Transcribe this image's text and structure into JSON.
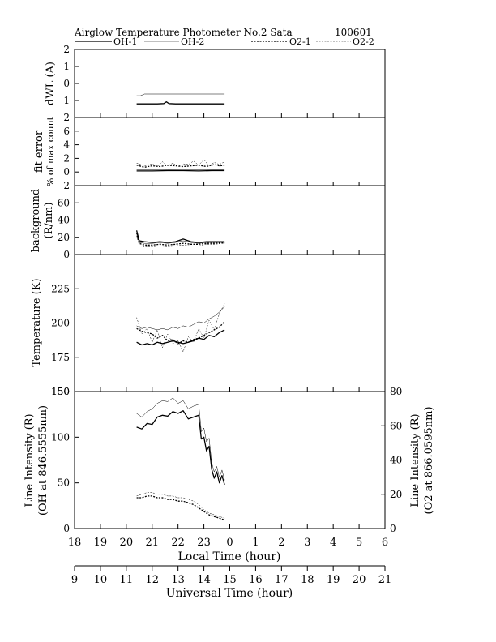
{
  "header": {
    "title": "Airglow Temperature Photometer No.2  Sata",
    "date": "100601"
  },
  "legend": {
    "entries": [
      {
        "label": "OH-1",
        "style": "thick-solid"
      },
      {
        "label": "OH-2",
        "style": "thin-solid"
      },
      {
        "label": "O2-1",
        "style": "thick-dashed"
      },
      {
        "label": "O2-2",
        "style": "thin-dashed"
      }
    ]
  },
  "x_axes": {
    "local": {
      "label": "Local Time (hour)",
      "ticks": [
        "18",
        "19",
        "20",
        "21",
        "22",
        "23",
        "0",
        "1",
        "2",
        "3",
        "4",
        "5",
        "6"
      ]
    },
    "universal": {
      "label": "Universal Time (hour)",
      "ticks": [
        "9",
        "10",
        "11",
        "12",
        "13",
        "14",
        "15",
        "16",
        "17",
        "18",
        "19",
        "20",
        "21"
      ]
    }
  },
  "chart_data": [
    {
      "type": "line",
      "panel": "dwl",
      "ylabel": "dWL (A)",
      "ylim": [
        -2,
        2
      ],
      "yticks": [
        "2",
        "1",
        "0",
        "-1",
        "-2"
      ],
      "x_unit": "local time (hour)",
      "series": [
        {
          "name": "OH-1",
          "x": [
            20.4,
            21.2,
            21.45,
            21.55,
            21.65,
            21.9,
            23.8
          ],
          "y": [
            -1.2,
            -1.2,
            -1.18,
            -1.08,
            -1.18,
            -1.2,
            -1.2
          ]
        },
        {
          "name": "OH-2",
          "x": [
            20.4,
            20.55,
            20.7,
            23.8
          ],
          "y": [
            -0.72,
            -0.72,
            -0.62,
            -0.62
          ]
        }
      ]
    },
    {
      "type": "line",
      "panel": "fit_error",
      "ylabel": [
        "fit error",
        "% of max count"
      ],
      "ylim": [
        -2,
        8
      ],
      "yticks": [
        "6",
        "4",
        "2",
        "0",
        "-2"
      ],
      "x_unit": "local time (hour)",
      "series": [
        {
          "name": "OH-1",
          "x": [
            20.4,
            21.0,
            21.6,
            22.2,
            22.8,
            23.3,
            23.8
          ],
          "y": [
            0.15,
            0.15,
            0.2,
            0.2,
            0.15,
            0.2,
            0.2
          ]
        },
        {
          "name": "OH-2",
          "x": [
            20.4,
            21.0,
            21.6,
            22.2,
            22.8,
            23.3,
            23.8
          ],
          "y": [
            0.3,
            0.3,
            0.35,
            0.3,
            0.35,
            0.35,
            0.35
          ]
        },
        {
          "name": "O2-1",
          "x": [
            20.4,
            20.7,
            21.0,
            21.3,
            21.6,
            21.9,
            22.2,
            22.5,
            22.8,
            23.1,
            23.4,
            23.6,
            23.8
          ],
          "y": [
            1.0,
            0.7,
            0.9,
            0.8,
            1.0,
            0.9,
            0.8,
            0.9,
            1.0,
            0.8,
            1.1,
            0.9,
            1.0
          ]
        },
        {
          "name": "O2-2",
          "x": [
            20.4,
            20.7,
            21.0,
            21.2,
            21.4,
            21.6,
            21.8,
            22.0,
            22.2,
            22.4,
            22.6,
            22.8,
            23.0,
            23.2,
            23.4,
            23.6,
            23.8
          ],
          "y": [
            1.3,
            0.9,
            1.2,
            0.8,
            1.5,
            0.9,
            1.3,
            0.8,
            1.2,
            1.1,
            1.6,
            1.0,
            1.8,
            0.9,
            1.4,
            1.1,
            1.5
          ]
        }
      ]
    },
    {
      "type": "line",
      "panel": "background",
      "ylabel": [
        "background",
        "(R/nm)"
      ],
      "ylim": [
        0,
        80
      ],
      "yticks": [
        "60",
        "40",
        "20",
        "0"
      ],
      "x_unit": "local time (hour)",
      "series": [
        {
          "name": "OH-1",
          "x": [
            20.4,
            20.5,
            20.7,
            21.0,
            21.3,
            21.6,
            21.9,
            22.2,
            22.5,
            22.8,
            23.1,
            23.4,
            23.8
          ],
          "y": [
            28,
            16,
            15,
            14,
            15,
            14,
            15,
            18,
            15,
            14,
            15,
            15,
            15
          ]
        },
        {
          "name": "OH-2",
          "x": [
            20.4,
            20.5,
            20.7,
            21.0,
            21.3,
            21.6,
            21.9,
            22.2,
            22.5,
            22.8,
            23.1,
            23.4,
            23.8
          ],
          "y": [
            25,
            14,
            13,
            13,
            14,
            13,
            14,
            16,
            14,
            13,
            14,
            14,
            14
          ]
        },
        {
          "name": "O2-1",
          "x": [
            20.4,
            20.5,
            20.7,
            21.0,
            21.3,
            21.6,
            21.9,
            22.2,
            22.5,
            22.8,
            23.1,
            23.4,
            23.8
          ],
          "y": [
            25,
            13,
            11,
            11,
            12,
            11,
            12,
            13,
            12,
            12,
            13,
            13,
            14
          ]
        },
        {
          "name": "O2-2",
          "x": [
            20.4,
            20.5,
            20.7,
            21.0,
            21.3,
            21.6,
            21.9,
            22.2,
            22.5,
            22.8,
            23.1,
            23.4,
            23.8
          ],
          "y": [
            22,
            10,
            9,
            9,
            10,
            9,
            10,
            11,
            10,
            10,
            12,
            12,
            13
          ]
        }
      ]
    },
    {
      "type": "line",
      "panel": "temperature",
      "ylabel": "Temperature (K)",
      "ylim": [
        150,
        250
      ],
      "yticks": [
        "225",
        "200",
        "175",
        "150"
      ],
      "x_unit": "local time (hour)",
      "series": [
        {
          "name": "OH-1",
          "x": [
            20.4,
            20.6,
            20.8,
            21.0,
            21.2,
            21.4,
            21.6,
            21.8,
            22.0,
            22.2,
            22.4,
            22.6,
            22.8,
            23.0,
            23.2,
            23.4,
            23.6,
            23.8
          ],
          "y": [
            186,
            184,
            185,
            184,
            186,
            185,
            186,
            187,
            186,
            185,
            186,
            187,
            189,
            188,
            191,
            190,
            193,
            195
          ]
        },
        {
          "name": "OH-2",
          "x": [
            20.4,
            20.6,
            20.8,
            21.0,
            21.2,
            21.4,
            21.6,
            21.8,
            22.0,
            22.2,
            22.4,
            22.6,
            22.8,
            23.0,
            23.2,
            23.4,
            23.6,
            23.8
          ],
          "y": [
            198,
            196,
            197,
            196,
            195,
            196,
            195,
            197,
            196,
            198,
            197,
            199,
            201,
            200,
            203,
            205,
            208,
            212
          ]
        },
        {
          "name": "O2-1",
          "x": [
            20.4,
            20.6,
            20.8,
            21.0,
            21.2,
            21.4,
            21.6,
            21.8,
            22.0,
            22.2,
            22.4,
            22.6,
            22.8,
            23.0,
            23.2,
            23.4,
            23.6,
            23.8
          ],
          "y": [
            196,
            194,
            193,
            192,
            189,
            191,
            187,
            188,
            185,
            187,
            186,
            188,
            189,
            191,
            193,
            195,
            197,
            201
          ]
        },
        {
          "name": "O2-2",
          "x": [
            20.4,
            20.6,
            20.8,
            21.0,
            21.2,
            21.4,
            21.6,
            21.8,
            22.0,
            22.2,
            22.4,
            22.6,
            22.8,
            23.0,
            23.2,
            23.4,
            23.6,
            23.8
          ],
          "y": [
            204,
            192,
            196,
            186,
            195,
            182,
            192,
            185,
            187,
            179,
            190,
            186,
            196,
            189,
            202,
            195,
            207,
            214
          ]
        }
      ]
    },
    {
      "type": "line",
      "panel": "line_intensity",
      "ylabel": [
        "Line Intensity (R)",
        "(OH at 846.5555nm)"
      ],
      "ylim": [
        0,
        150
      ],
      "yticks": [
        "150",
        "100",
        "50",
        "0"
      ],
      "ylabel_right": [
        "Line Intensity (R)",
        "(O2 at 866.0595nm)"
      ],
      "ylim_right": [
        0,
        80
      ],
      "yticks_right": [
        "80",
        "60",
        "40",
        "20",
        "0"
      ],
      "x_unit": "local time (hour)",
      "series": [
        {
          "name": "OH-1",
          "axis": "left",
          "x": [
            20.4,
            20.6,
            20.8,
            21.0,
            21.2,
            21.4,
            21.6,
            21.8,
            22.0,
            22.2,
            22.4,
            22.6,
            22.8,
            22.9,
            23.0,
            23.1,
            23.2,
            23.3,
            23.4,
            23.5,
            23.6,
            23.7,
            23.8
          ],
          "y": [
            111,
            109,
            115,
            114,
            122,
            124,
            123,
            128,
            126,
            129,
            120,
            122,
            124,
            98,
            100,
            85,
            90,
            65,
            55,
            62,
            50,
            58,
            48
          ]
        },
        {
          "name": "OH-2",
          "axis": "left",
          "x": [
            20.4,
            20.6,
            20.8,
            21.0,
            21.2,
            21.4,
            21.6,
            21.8,
            22.0,
            22.2,
            22.4,
            22.6,
            22.8,
            22.9,
            23.0,
            23.1,
            23.2,
            23.3,
            23.4,
            23.5,
            23.6,
            23.7,
            23.8
          ],
          "y": [
            126,
            122,
            128,
            131,
            137,
            140,
            139,
            143,
            137,
            140,
            131,
            134,
            136,
            106,
            110,
            95,
            99,
            72,
            62,
            68,
            56,
            64,
            53
          ]
        },
        {
          "name": "O2-1",
          "axis": "right",
          "x": [
            20.4,
            20.6,
            20.8,
            21.0,
            21.2,
            21.4,
            21.6,
            21.8,
            22.0,
            22.2,
            22.4,
            22.6,
            22.8,
            23.0,
            23.2,
            23.4,
            23.6,
            23.8
          ],
          "y": [
            18,
            18,
            19,
            19,
            18,
            18,
            17,
            17,
            16,
            16,
            15,
            14,
            12,
            10,
            8,
            7,
            6,
            5
          ]
        },
        {
          "name": "O2-2",
          "axis": "right",
          "x": [
            20.4,
            20.6,
            20.8,
            21.0,
            21.2,
            21.4,
            21.6,
            21.8,
            22.0,
            22.2,
            22.4,
            22.6,
            22.8,
            23.0,
            23.2,
            23.4,
            23.6,
            23.8
          ],
          "y": [
            19,
            20,
            21,
            21,
            20,
            20,
            19,
            19,
            18,
            18,
            17,
            16,
            14,
            11,
            9,
            8,
            7,
            6
          ]
        }
      ]
    }
  ]
}
